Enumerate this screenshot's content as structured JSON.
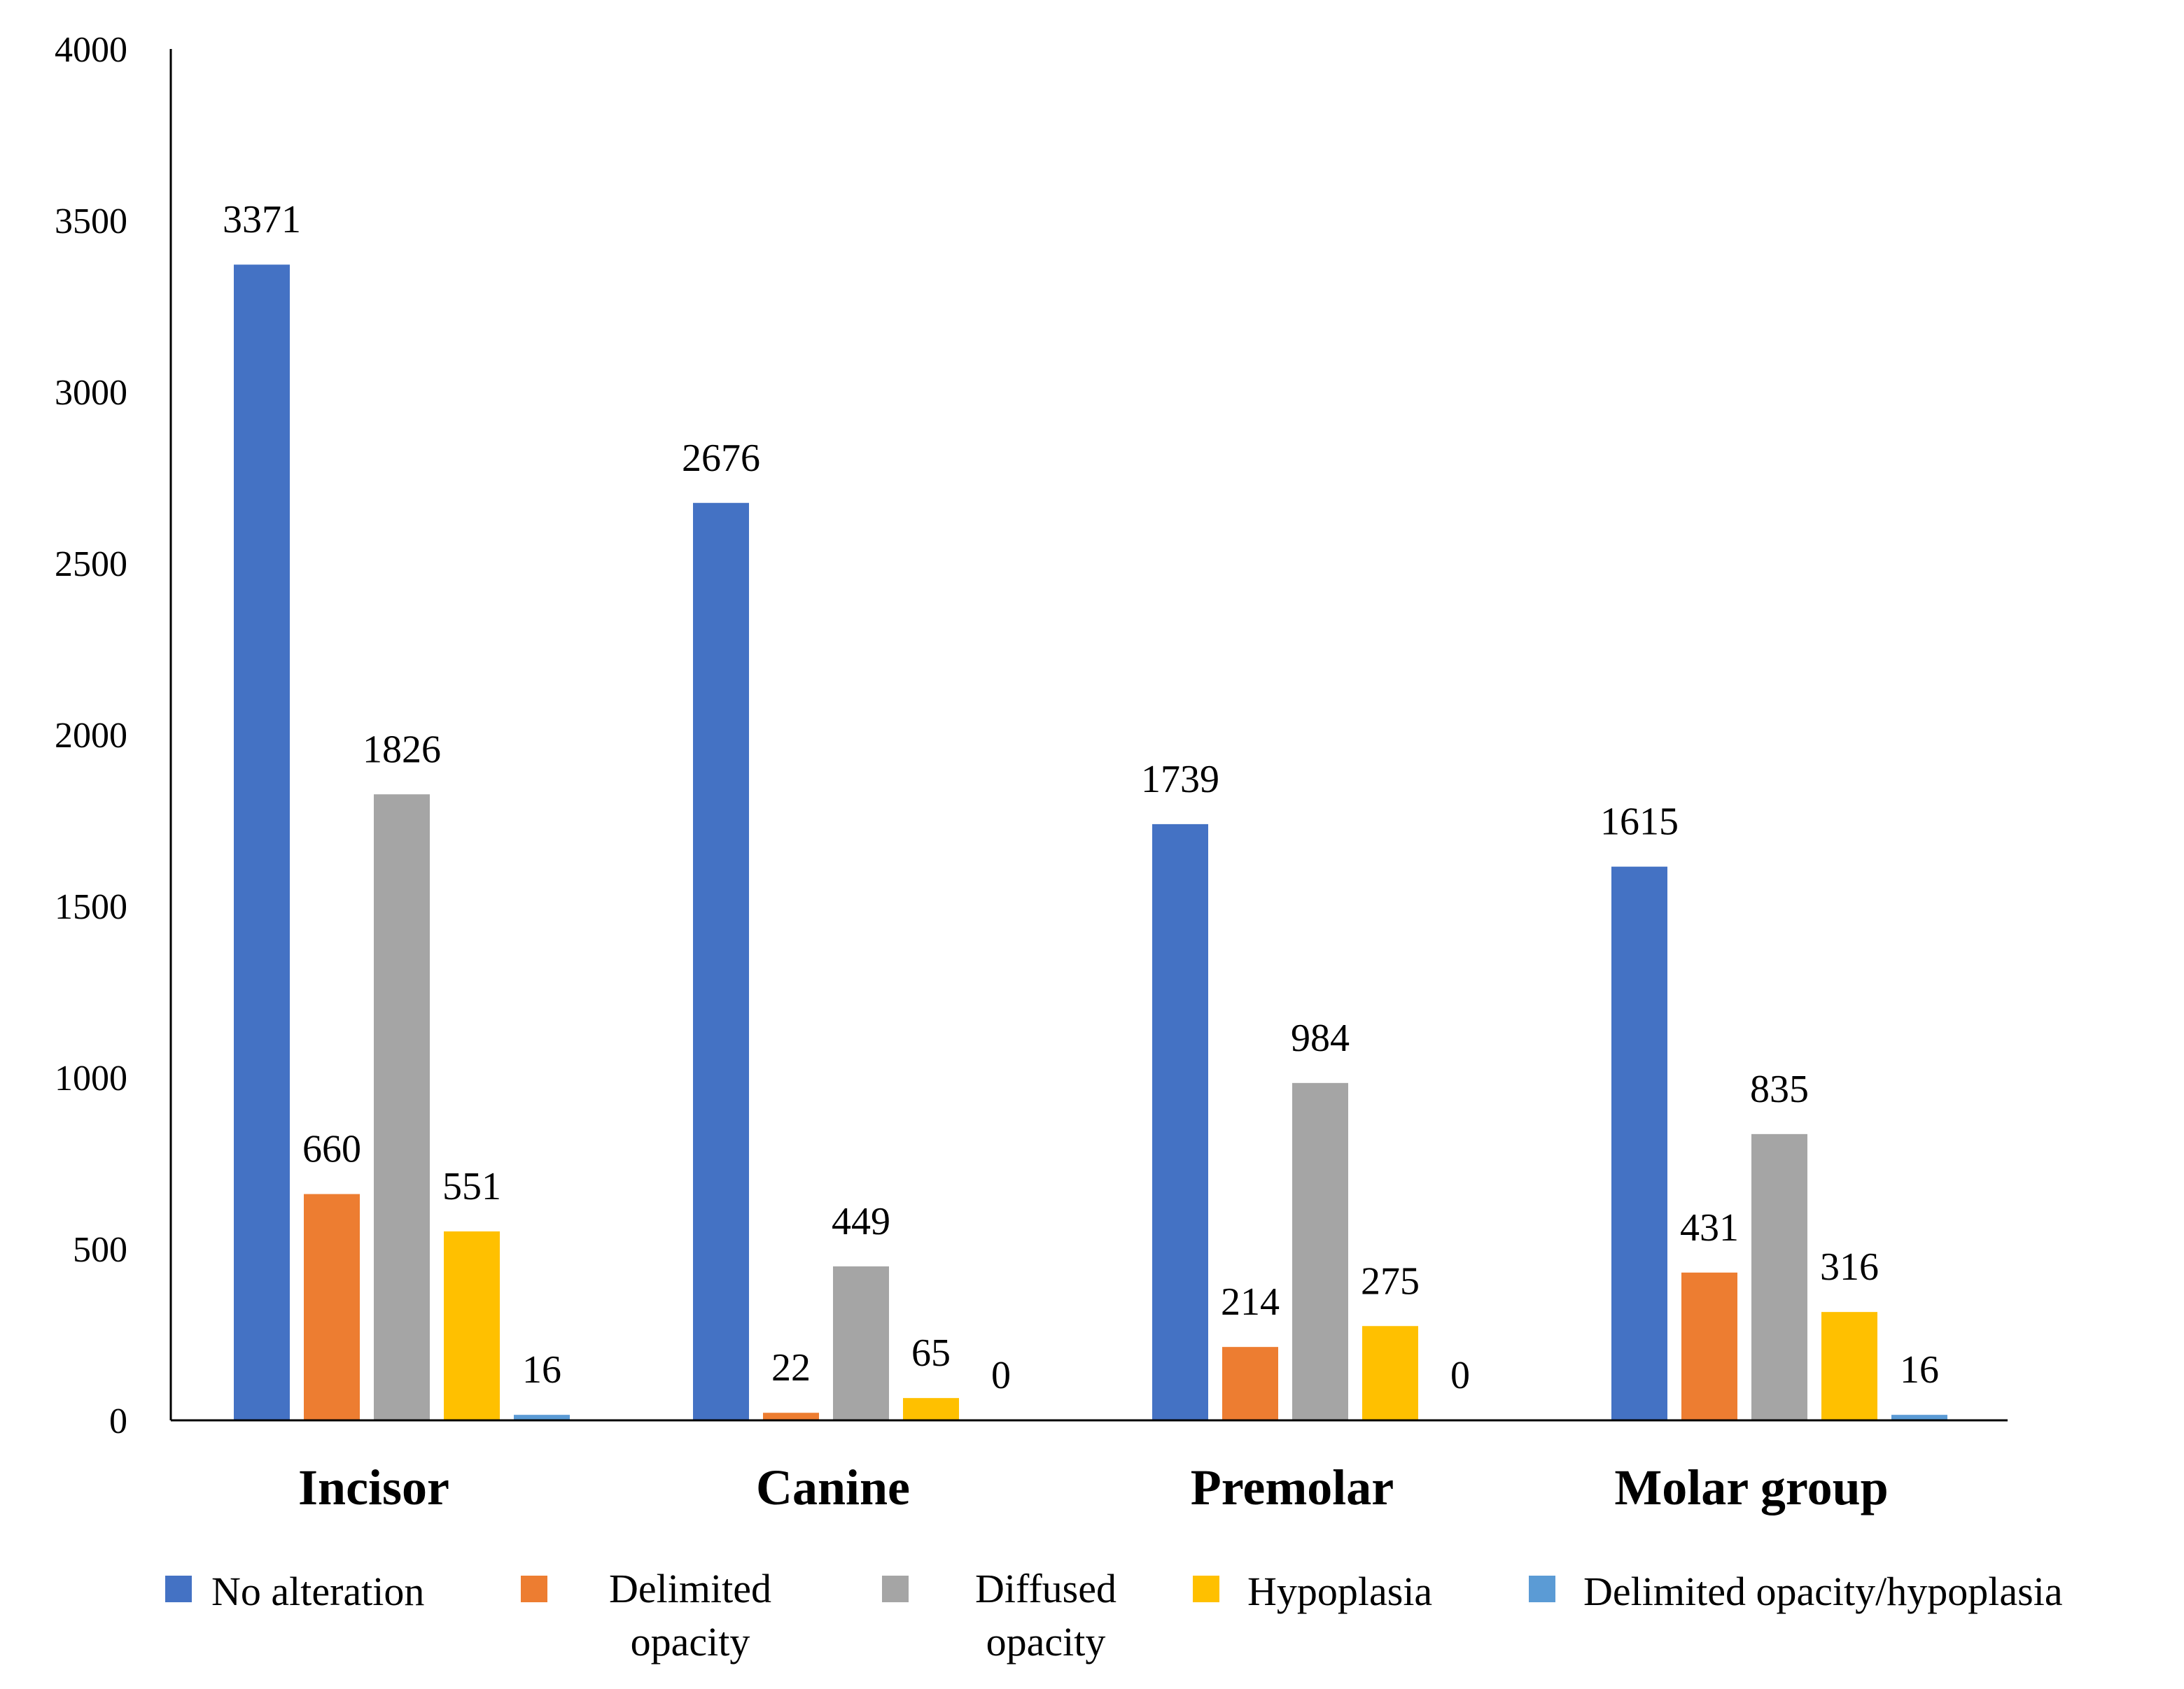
{
  "chart_data": {
    "type": "bar",
    "title": "",
    "xlabel": "",
    "ylabel": "",
    "ylim": [
      0,
      4000
    ],
    "yticks": [
      0,
      500,
      1000,
      1500,
      2000,
      2500,
      3000,
      3500,
      4000
    ],
    "categories": [
      "Incisor",
      "Canine",
      "Premolar",
      "Molar group"
    ],
    "series": [
      {
        "name": "No alteration",
        "legend_lines": [
          "No alteration"
        ],
        "color": "#4472C4",
        "values": [
          3371,
          2676,
          1739,
          1615
        ]
      },
      {
        "name": "Delimited opacity",
        "legend_lines": [
          "Delimited",
          "opacity"
        ],
        "color": "#ED7D31",
        "values": [
          660,
          22,
          214,
          431
        ]
      },
      {
        "name": "Diffused opacity",
        "legend_lines": [
          "Diffused",
          "opacity"
        ],
        "color": "#A5A5A5",
        "values": [
          1826,
          449,
          984,
          835
        ]
      },
      {
        "name": "Hypoplasia",
        "legend_lines": [
          "Hypoplasia"
        ],
        "color": "#FFC000",
        "values": [
          551,
          65,
          275,
          316
        ]
      },
      {
        "name": "Delimited opacity/hypoplasia",
        "legend_lines": [
          "Delimited opacity/hypoplasia"
        ],
        "color": "#5B9BD5",
        "values": [
          16,
          0,
          0,
          16
        ]
      }
    ],
    "data_labels": true,
    "grid": false,
    "legend_position": "bottom"
  }
}
